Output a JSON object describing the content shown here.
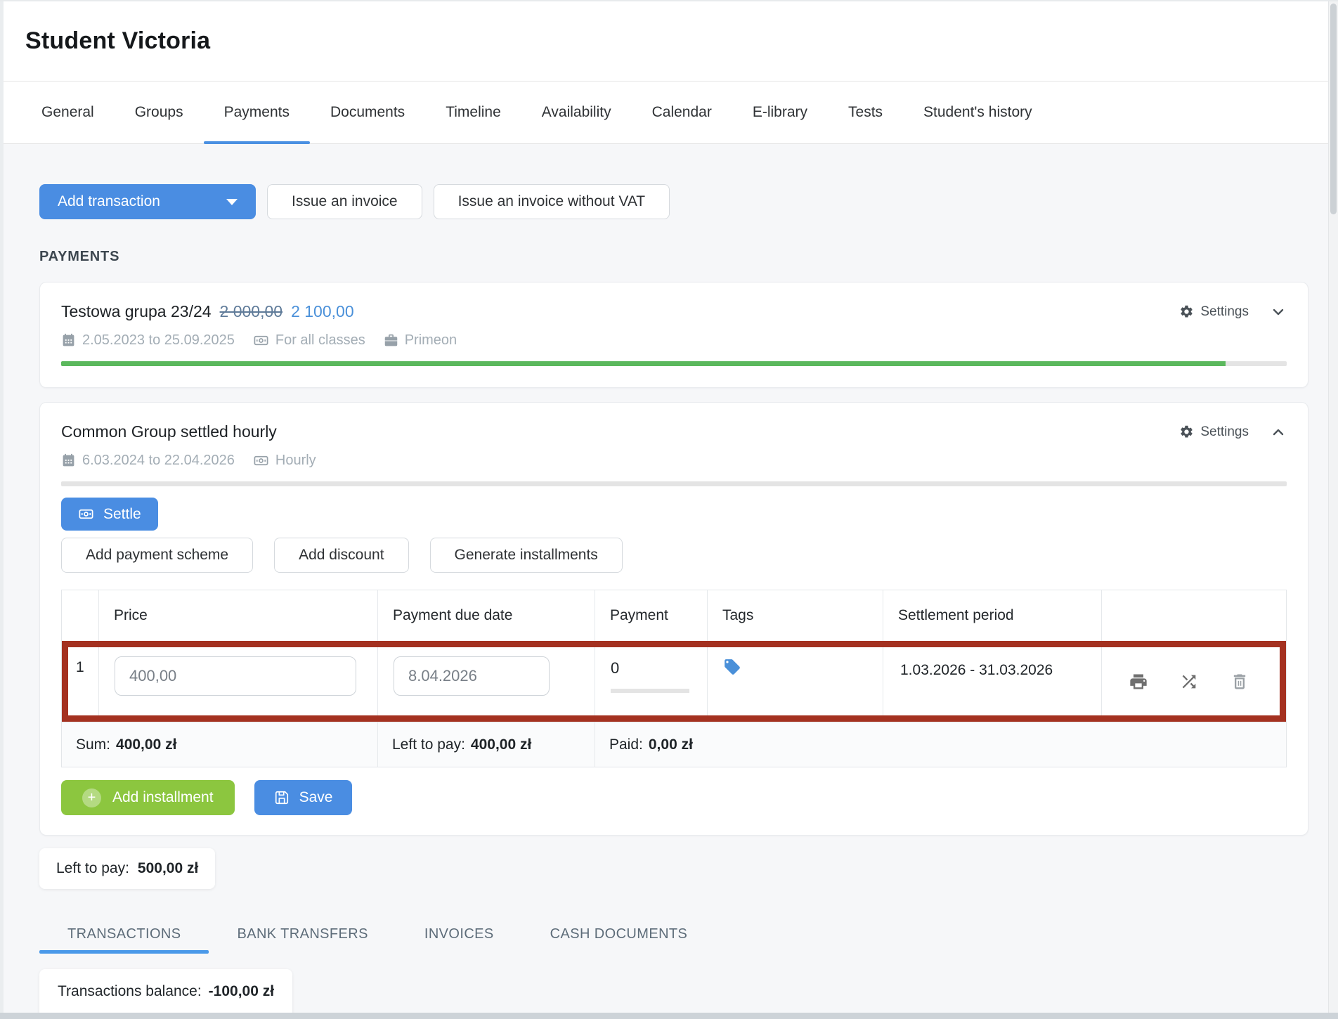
{
  "page": {
    "title": "Student Victoria"
  },
  "tabs": {
    "items": [
      "General",
      "Groups",
      "Payments",
      "Documents",
      "Timeline",
      "Availability",
      "Calendar",
      "E-library",
      "Tests",
      "Student's history"
    ],
    "active": "Payments"
  },
  "toolbar": {
    "add_transaction_label": "Add transaction",
    "issue_invoice_label": "Issue an invoice",
    "issue_invoice_no_vat_label": "Issue an invoice without VAT"
  },
  "payments_section": {
    "heading": "PAYMENTS"
  },
  "group1": {
    "title": "Testowa grupa 23/24",
    "old_price": "2 000,00",
    "new_price": "2 100,00",
    "date_range": "2.05.2023 to 25.09.2025",
    "billing_mode": "For all classes",
    "company": "Primeon",
    "settings_label": "Settings",
    "progress_percent": 95
  },
  "group2": {
    "title": "Common Group settled hourly",
    "date_range": "6.03.2024 to 22.04.2026",
    "billing_mode": "Hourly",
    "settings_label": "Settings",
    "progress_percent": 0,
    "buttons": {
      "settle": "Settle",
      "add_payment_scheme": "Add payment scheme",
      "add_discount": "Add discount",
      "generate_installments": "Generate installments",
      "add_installment": "Add installment",
      "save": "Save"
    },
    "table": {
      "headers": {
        "index": "",
        "price": "Price",
        "due_date": "Payment due date",
        "payment": "Payment",
        "tags": "Tags",
        "settlement": "Settlement period"
      },
      "row": {
        "index": "1",
        "price": "400,00",
        "due_date": "8.04.2026",
        "payment": "0",
        "settlement_period": "1.03.2026 - 31.03.2026"
      },
      "footer": {
        "sum_label": "Sum:",
        "sum_value": "400,00 zł",
        "left_label": "Left to pay:",
        "left_value": "400,00 zł",
        "paid_label": "Paid:",
        "paid_value": "0,00 zł"
      }
    }
  },
  "summary": {
    "left_to_pay_label": "Left to pay:",
    "left_to_pay_value": "500,00 zł"
  },
  "bottom_tabs": {
    "items": [
      "TRANSACTIONS",
      "BANK TRANSFERS",
      "INVOICES",
      "CASH DOCUMENTS"
    ],
    "active": "TRANSACTIONS"
  },
  "balance": {
    "label": "Transactions balance:",
    "value": "-100,00 zł"
  },
  "colors": {
    "primary_blue": "#4a8de2",
    "price_blue": "#4a90d9",
    "struck_price": "#5f7b99",
    "progress_green": "#5bb85d",
    "button_green": "#8cc63f",
    "annotation_red": "#a43120",
    "tag_blue": "#4a90d9",
    "active_tab_underline": "#4a90e2"
  }
}
